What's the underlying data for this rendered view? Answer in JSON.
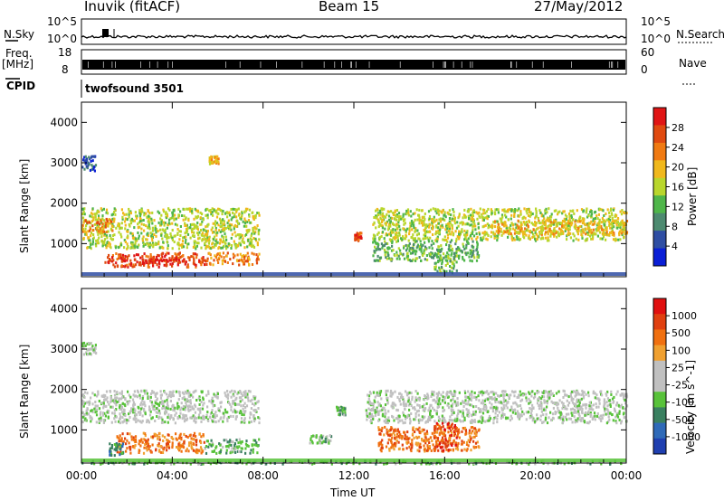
{
  "header": {
    "station": "Inuvik (fitACF)",
    "beam": "Beam 15",
    "date": "27/May/2012"
  },
  "status_panel": {
    "nsky_label": "N.Sky",
    "nsky_ticks": [
      "10^5",
      "10^0"
    ],
    "nsearch_label": "N.Search",
    "nsearch_ticks": [
      "10^5",
      "10^0"
    ],
    "freq_label": "Freq.",
    "freq_unit": "[MHz]",
    "freq_ticks": [
      "18",
      "8"
    ],
    "nave_label": "Nave",
    "nave_ticks": [
      "60",
      "0"
    ],
    "cpid_label": "CPID",
    "cpid_value": "twofsound 3501"
  },
  "colors": {
    "power_scale": [
      "#0a1fd6",
      "#2f4ea3",
      "#4d8a70",
      "#4fb64a",
      "#b9d62c",
      "#f0b81c",
      "#f07a12",
      "#e04a10",
      "#e01515"
    ],
    "velocity_scale": [
      "#1f3fb0",
      "#2f6ab8",
      "#3a8060",
      "#58c23a",
      "#c0c0c0",
      "#c0c0c0",
      "#f0a030",
      "#f07010",
      "#e04010",
      "#e01010"
    ]
  },
  "chart_data": [
    {
      "type": "heatmap",
      "name": "power",
      "ylabel": "Slant Range [km]",
      "yticks": [
        "4000",
        "3000",
        "2000",
        "1000"
      ],
      "xticks": [
        "00:00",
        "04:00",
        "08:00",
        "12:00",
        "16:00",
        "20:00",
        "00:00"
      ],
      "xlim": [
        0,
        24
      ],
      "ylim": [
        180,
        4500
      ],
      "colorbar_label": "Power [dB]",
      "colorbar_ticks": [
        "28",
        "24",
        "20",
        "16",
        "12",
        "8",
        "4"
      ],
      "regions": [
        {
          "t0": 0.0,
          "t1": 7.8,
          "r0": 900,
          "r1": 1900,
          "level": 4
        },
        {
          "t0": 0.0,
          "t1": 1.4,
          "r0": 1300,
          "r1": 1650,
          "level": 6
        },
        {
          "t0": 1.0,
          "t1": 5.5,
          "r0": 450,
          "r1": 800,
          "level": 7
        },
        {
          "t0": 2.2,
          "t1": 4.6,
          "r0": 500,
          "r1": 650,
          "level": 8
        },
        {
          "t0": 5.5,
          "t1": 7.8,
          "r0": 500,
          "r1": 800,
          "level": 6
        },
        {
          "t0": 0.0,
          "t1": 0.6,
          "r0": 2800,
          "r1": 3200,
          "level": 1
        },
        {
          "t0": 5.6,
          "t1": 6.0,
          "r0": 3000,
          "r1": 3200,
          "level": 5
        },
        {
          "t0": 12.8,
          "t1": 24.0,
          "r0": 1100,
          "r1": 1900,
          "level": 4
        },
        {
          "t0": 18.0,
          "t1": 24.0,
          "r0": 1250,
          "r1": 1600,
          "level": 5
        },
        {
          "t0": 12.8,
          "t1": 17.5,
          "r0": 600,
          "r1": 1100,
          "level": 3
        },
        {
          "t0": 15.5,
          "t1": 16.5,
          "r0": 300,
          "r1": 900,
          "level": 3
        },
        {
          "t0": 12.0,
          "t1": 12.3,
          "r0": 1100,
          "r1": 1300,
          "level": 7
        }
      ]
    },
    {
      "type": "heatmap",
      "name": "velocity",
      "ylabel": "Slant Range [km]",
      "yticks": [
        "4000",
        "3000",
        "2000",
        "1000"
      ],
      "xticks": [
        "00:00",
        "04:00",
        "08:00",
        "12:00",
        "16:00",
        "20:00",
        "00:00"
      ],
      "xlim": [
        0,
        24
      ],
      "ylim": [
        180,
        4500
      ],
      "xlabel": "Time UT",
      "colorbar_label": "Velocity [m s^-1]",
      "colorbar_ticks": [
        "1000",
        "500",
        "100",
        "25",
        "-25",
        "-100",
        "-500",
        "-1000"
      ],
      "regions": [
        {
          "t0": 0.0,
          "t1": 7.8,
          "r0": 1200,
          "r1": 2000,
          "level": 4
        },
        {
          "t0": 1.5,
          "t1": 5.4,
          "r0": 450,
          "r1": 950,
          "level": 7
        },
        {
          "t0": 5.4,
          "t1": 7.8,
          "r0": 450,
          "r1": 800,
          "level": 3
        },
        {
          "t0": 1.2,
          "t1": 1.8,
          "r0": 400,
          "r1": 700,
          "level": 2
        },
        {
          "t0": 0.0,
          "t1": 0.6,
          "r0": 2900,
          "r1": 3200,
          "level": 4
        },
        {
          "t0": 12.5,
          "t1": 24.0,
          "r0": 1200,
          "r1": 2000,
          "level": 4
        },
        {
          "t0": 13.0,
          "t1": 17.5,
          "r0": 500,
          "r1": 1100,
          "level": 7
        },
        {
          "t0": 15.5,
          "t1": 16.5,
          "r0": 500,
          "r1": 1200,
          "level": 8
        },
        {
          "t0": 10.0,
          "t1": 11.0,
          "r0": 700,
          "r1": 900,
          "level": 3
        },
        {
          "t0": 11.2,
          "t1": 11.6,
          "r0": 1400,
          "r1": 1600,
          "level": 3
        },
        {
          "t0": 0.0,
          "t1": 24.0,
          "r0": 180,
          "r1": 260,
          "level": 3
        }
      ]
    }
  ]
}
